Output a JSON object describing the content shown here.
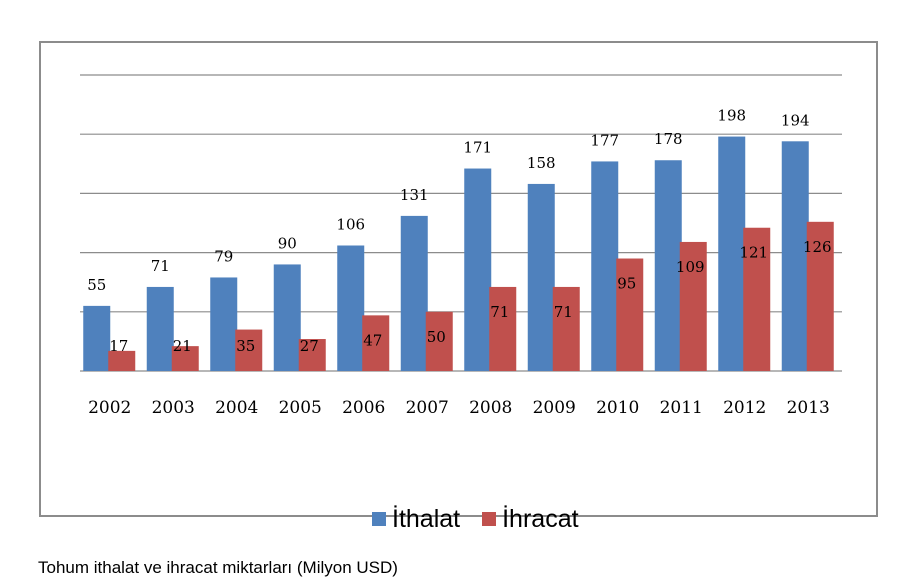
{
  "chart_data": {
    "type": "bar",
    "categories": [
      "2002",
      "2003",
      "2004",
      "2005",
      "2006",
      "2007",
      "2008",
      "2009",
      "2010",
      "2011",
      "2012",
      "2013"
    ],
    "series": [
      {
        "name": "İthalat",
        "color": "#4f81bd",
        "values": [
          55,
          71,
          79,
          90,
          106,
          131,
          171,
          158,
          177,
          178,
          198,
          194
        ]
      },
      {
        "name": "İhracat",
        "color": "#c0504d",
        "values": [
          17,
          21,
          35,
          27,
          47,
          50,
          71,
          71,
          95,
          109,
          121,
          126
        ]
      }
    ],
    "ylim": [
      0,
      250
    ],
    "grid": true,
    "legend_position": "bottom",
    "title": "",
    "xlabel": "",
    "ylabel": ""
  },
  "caption": "Tohum ithalat ve ihracat miktarları (Milyon USD)"
}
